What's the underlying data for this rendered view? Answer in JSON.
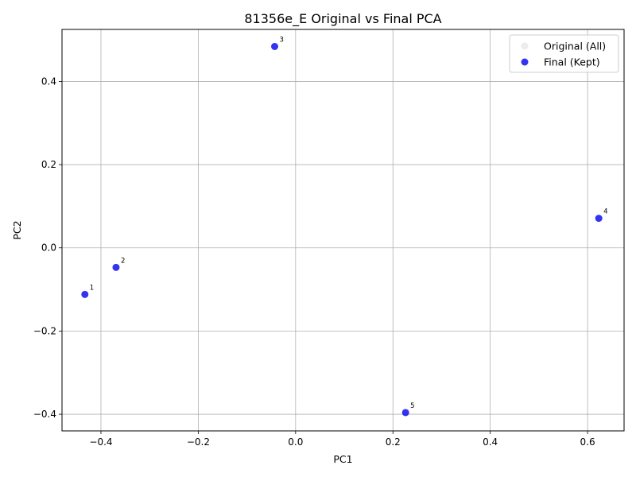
{
  "chart_data": {
    "type": "scatter",
    "title": "81356e_E Original vs Final PCA",
    "xlabel": "PC1",
    "ylabel": "PC2",
    "xlim": [
      -0.48,
      0.675
    ],
    "ylim": [
      -0.44,
      0.525
    ],
    "x_ticks": [
      -0.4,
      -0.2,
      0.0,
      0.2,
      0.4,
      0.6
    ],
    "x_tick_labels": [
      "−0.4",
      "−0.2",
      "0.0",
      "0.2",
      "0.4",
      "0.6"
    ],
    "y_ticks": [
      -0.4,
      -0.2,
      0.0,
      0.2,
      0.4
    ],
    "y_tick_labels": [
      "−0.4",
      "−0.2",
      "0.0",
      "0.2",
      "0.4"
    ],
    "grid": true,
    "legend_position": "top-right",
    "series": [
      {
        "name": "Original (All)",
        "color": "#e0e0e0",
        "opacity": 0.6,
        "points": []
      },
      {
        "name": "Final (Kept)",
        "color": "#0000ee",
        "opacity": 0.8,
        "points": [
          {
            "label": "1",
            "x": -0.433,
            "y": -0.112
          },
          {
            "label": "2",
            "x": -0.369,
            "y": -0.047
          },
          {
            "label": "3",
            "x": -0.043,
            "y": 0.484
          },
          {
            "label": "4",
            "x": 0.623,
            "y": 0.071
          },
          {
            "label": "5",
            "x": 0.226,
            "y": -0.396
          }
        ]
      }
    ]
  }
}
